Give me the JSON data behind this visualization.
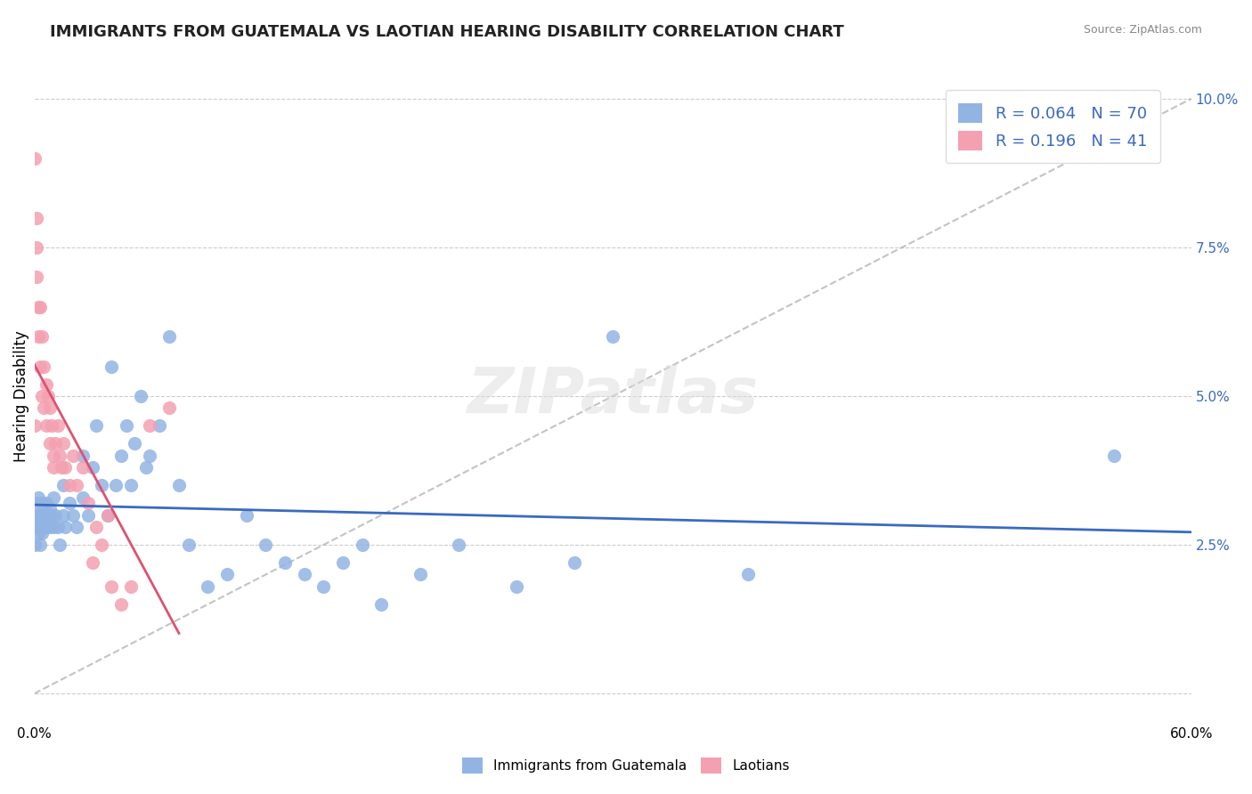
{
  "title": "IMMIGRANTS FROM GUATEMALA VS LAOTIAN HEARING DISABILITY CORRELATION CHART",
  "source": "Source: ZipAtlas.com",
  "xlabel": "",
  "ylabel": "Hearing Disability",
  "xlim": [
    0.0,
    0.6
  ],
  "ylim": [
    -0.005,
    0.105
  ],
  "xticks": [
    0.0,
    0.1,
    0.2,
    0.3,
    0.4,
    0.5,
    0.6
  ],
  "xticklabels": [
    "0.0%",
    "",
    "",
    "",
    "",
    "",
    "60.0%"
  ],
  "yticks": [
    0.0,
    0.025,
    0.05,
    0.075,
    0.1
  ],
  "yticklabels": [
    "",
    "2.5%",
    "5.0%",
    "7.5%",
    "10.0%"
  ],
  "legend_r1": "R = 0.064",
  "legend_n1": "N = 70",
  "legend_r2": "R = 0.196",
  "legend_n2": "N = 41",
  "color_blue": "#92b4e3",
  "color_pink": "#f4a0b0",
  "line_color_blue": "#3a6abf",
  "line_color_pink": "#e05070",
  "watermark": "ZIPatlas",
  "title_fontsize": 13,
  "axis_label_fontsize": 12,
  "tick_fontsize": 11,
  "guatemala_x": [
    0.0,
    0.0,
    0.0,
    0.001,
    0.001,
    0.001,
    0.002,
    0.002,
    0.002,
    0.003,
    0.003,
    0.003,
    0.004,
    0.004,
    0.005,
    0.005,
    0.006,
    0.006,
    0.007,
    0.008,
    0.008,
    0.009,
    0.01,
    0.01,
    0.011,
    0.012,
    0.013,
    0.015,
    0.015,
    0.016,
    0.018,
    0.02,
    0.022,
    0.025,
    0.025,
    0.028,
    0.03,
    0.032,
    0.035,
    0.038,
    0.04,
    0.042,
    0.045,
    0.048,
    0.05,
    0.052,
    0.055,
    0.058,
    0.06,
    0.065,
    0.07,
    0.075,
    0.08,
    0.09,
    0.1,
    0.11,
    0.12,
    0.13,
    0.14,
    0.15,
    0.16,
    0.17,
    0.18,
    0.2,
    0.22,
    0.25,
    0.28,
    0.3,
    0.37,
    0.56
  ],
  "guatemala_y": [
    0.03,
    0.025,
    0.028,
    0.032,
    0.03,
    0.028,
    0.033,
    0.03,
    0.027,
    0.03,
    0.028,
    0.025,
    0.032,
    0.027,
    0.03,
    0.028,
    0.032,
    0.028,
    0.03,
    0.031,
    0.028,
    0.03,
    0.033,
    0.028,
    0.03,
    0.028,
    0.025,
    0.035,
    0.03,
    0.028,
    0.032,
    0.03,
    0.028,
    0.04,
    0.033,
    0.03,
    0.038,
    0.045,
    0.035,
    0.03,
    0.055,
    0.035,
    0.04,
    0.045,
    0.035,
    0.042,
    0.05,
    0.038,
    0.04,
    0.045,
    0.06,
    0.035,
    0.025,
    0.018,
    0.02,
    0.03,
    0.025,
    0.022,
    0.02,
    0.018,
    0.022,
    0.025,
    0.015,
    0.02,
    0.025,
    0.018,
    0.022,
    0.06,
    0.02,
    0.04
  ],
  "laotian_x": [
    0.0,
    0.0,
    0.001,
    0.001,
    0.001,
    0.002,
    0.002,
    0.003,
    0.003,
    0.004,
    0.004,
    0.005,
    0.005,
    0.006,
    0.006,
    0.007,
    0.008,
    0.008,
    0.009,
    0.01,
    0.01,
    0.011,
    0.012,
    0.013,
    0.014,
    0.015,
    0.016,
    0.018,
    0.02,
    0.022,
    0.025,
    0.028,
    0.03,
    0.032,
    0.035,
    0.038,
    0.04,
    0.045,
    0.05,
    0.06,
    0.07
  ],
  "laotian_y": [
    0.09,
    0.045,
    0.08,
    0.075,
    0.07,
    0.065,
    0.06,
    0.065,
    0.055,
    0.06,
    0.05,
    0.055,
    0.048,
    0.052,
    0.045,
    0.05,
    0.048,
    0.042,
    0.045,
    0.04,
    0.038,
    0.042,
    0.045,
    0.04,
    0.038,
    0.042,
    0.038,
    0.035,
    0.04,
    0.035,
    0.038,
    0.032,
    0.022,
    0.028,
    0.025,
    0.03,
    0.018,
    0.015,
    0.018,
    0.045,
    0.048
  ]
}
